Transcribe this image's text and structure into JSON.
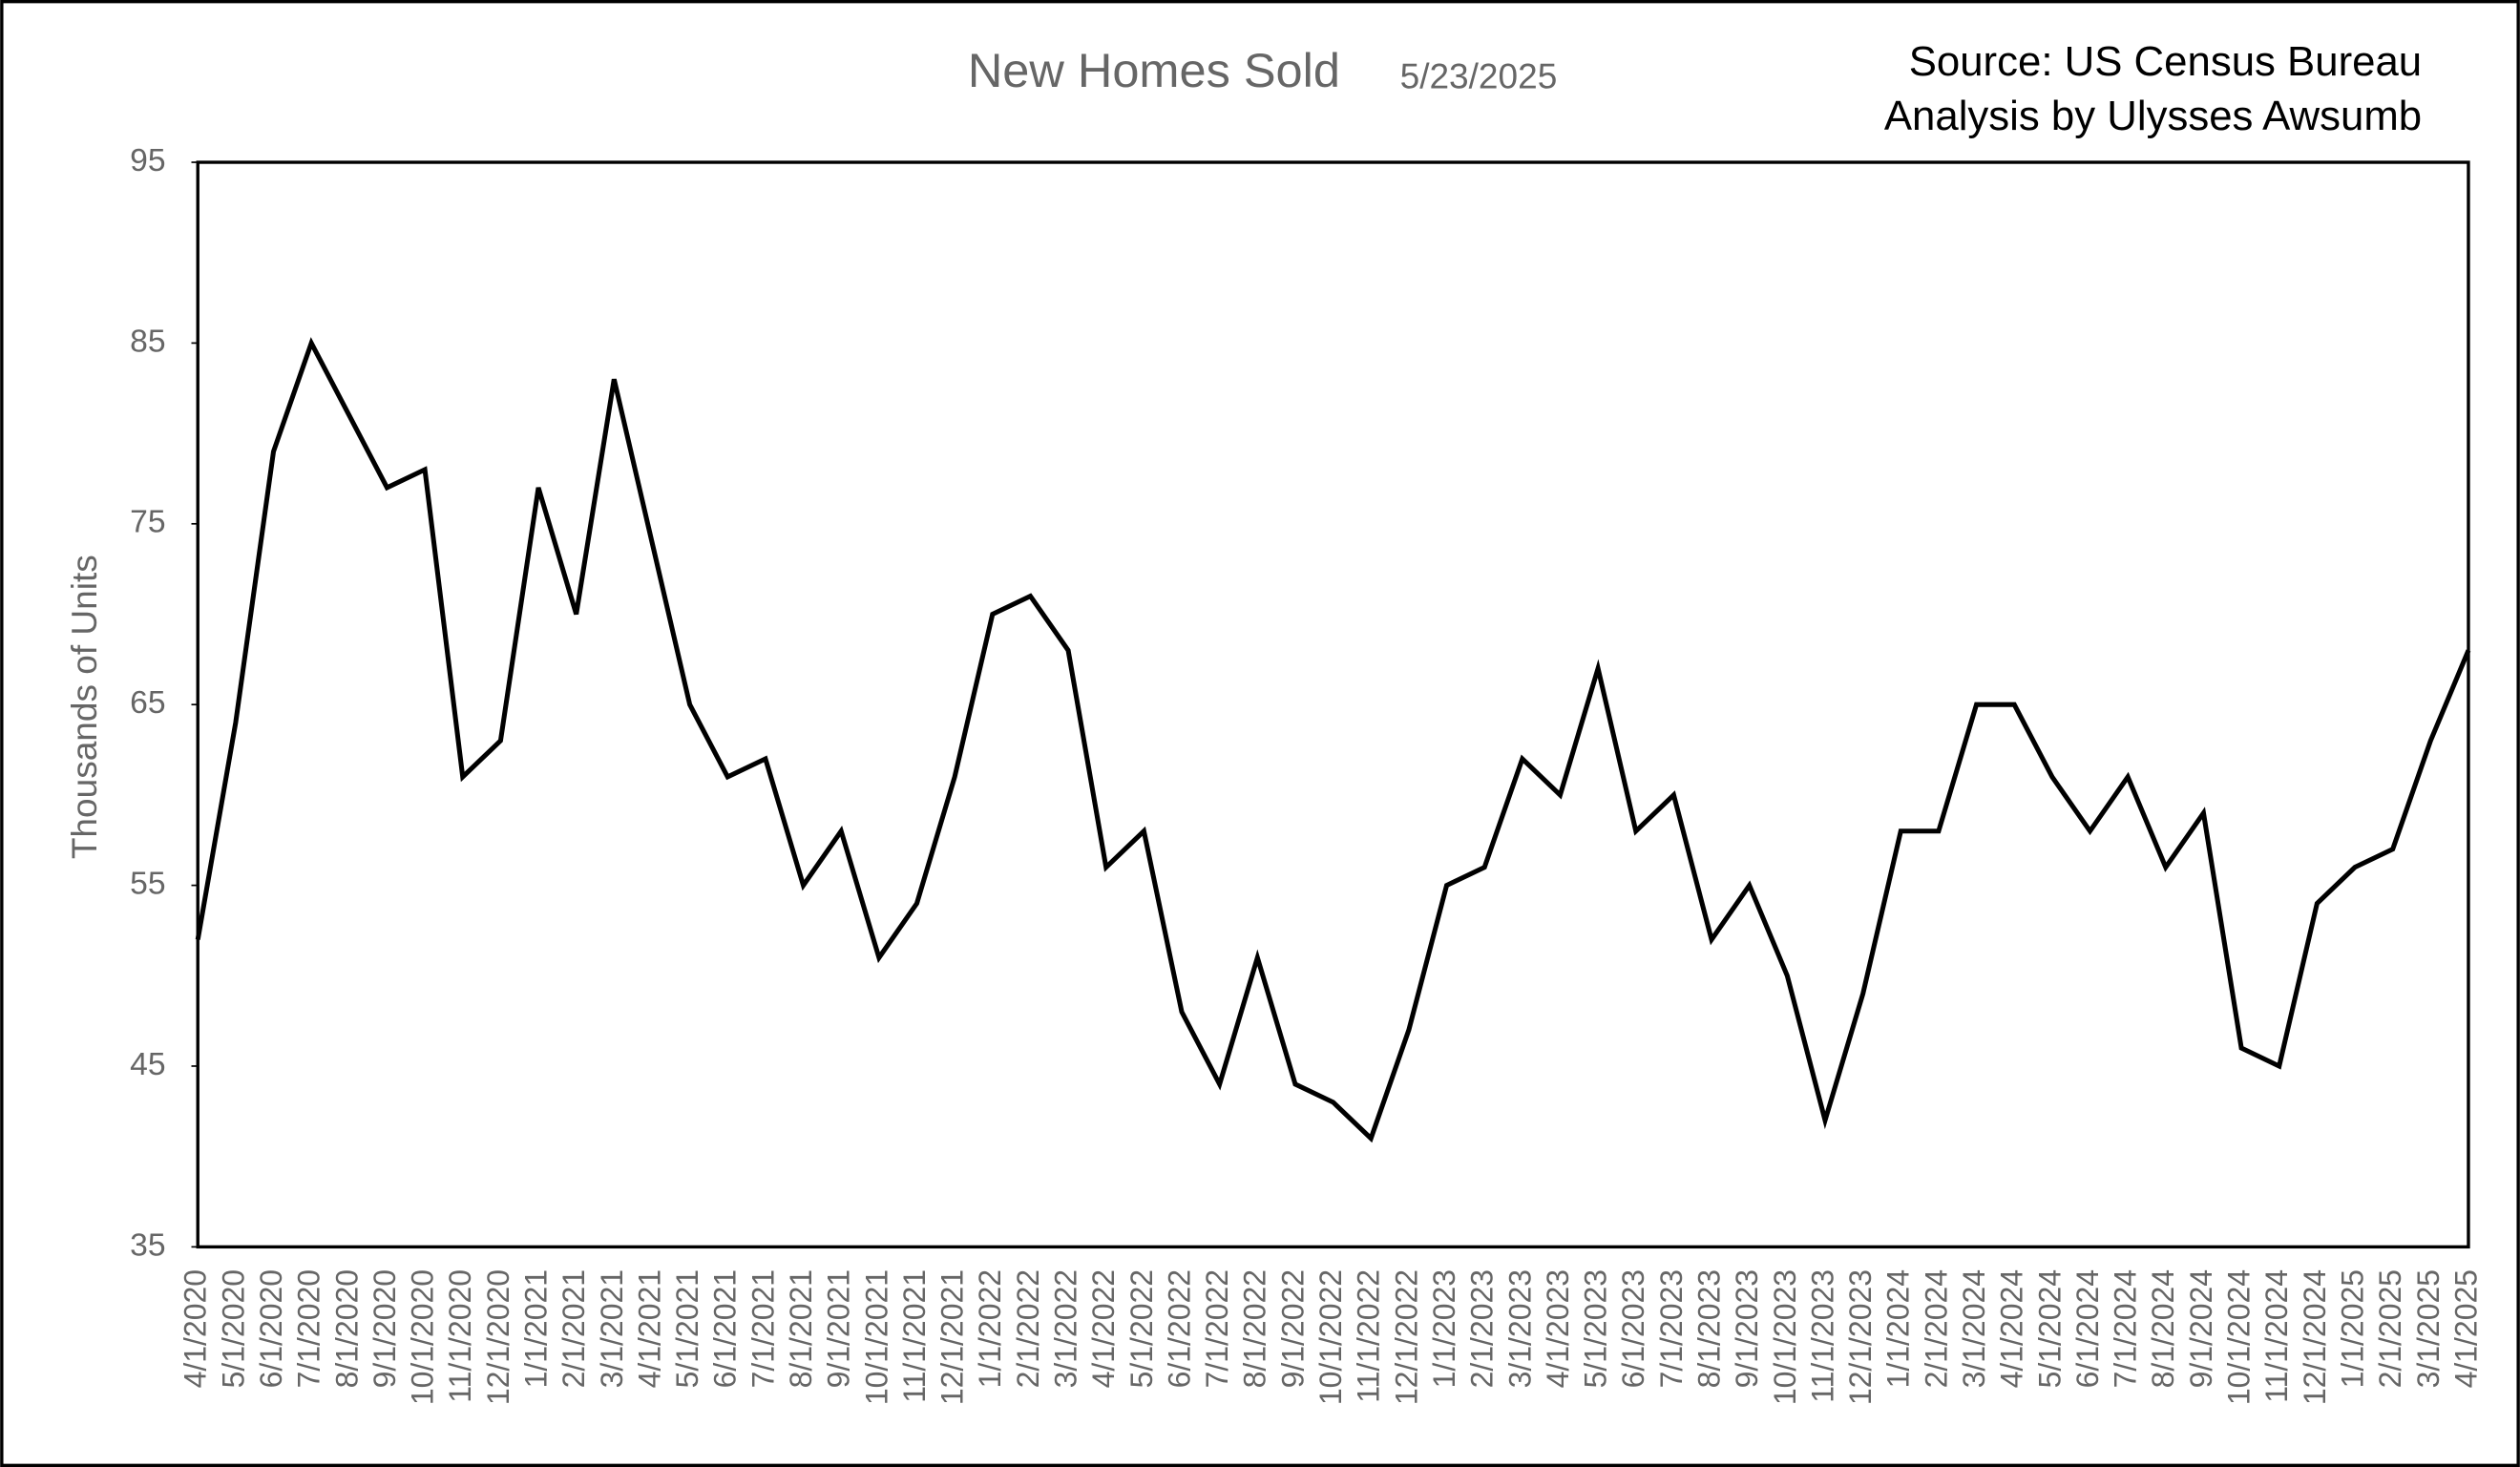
{
  "chart_data": {
    "type": "line",
    "title": "New Homes Sold",
    "subtitle": "5/23/2025",
    "source": [
      "Source: US Census Bureau",
      "Analysis by Ulysses Awsumb"
    ],
    "y_label": "Thousands of Units",
    "categories": [
      "4/1/2020",
      "5/1/2020",
      "6/1/2020",
      "7/1/2020",
      "8/1/2020",
      "9/1/2020",
      "10/1/2020",
      "11/1/2020",
      "12/1/2020",
      "1/1/2021",
      "2/1/2021",
      "3/1/2021",
      "4/1/2021",
      "5/1/2021",
      "6/1/2021",
      "7/1/2021",
      "8/1/2021",
      "9/1/2021",
      "10/1/2021",
      "11/1/2021",
      "12/1/2021",
      "1/1/2022",
      "2/1/2022",
      "3/1/2022",
      "4/1/2022",
      "5/1/2022",
      "6/1/2022",
      "7/1/2022",
      "8/1/2022",
      "9/1/2022",
      "10/1/2022",
      "11/1/2022",
      "12/1/2022",
      "1/1/2023",
      "2/1/2023",
      "3/1/2023",
      "4/1/2023",
      "5/1/2023",
      "6/1/2023",
      "7/1/2023",
      "8/1/2023",
      "9/1/2023",
      "10/1/2023",
      "11/1/2023",
      "12/1/2023",
      "1/1/2024",
      "2/1/2024",
      "3/1/2024",
      "4/1/2024",
      "5/1/2024",
      "6/1/2024",
      "7/1/2024",
      "8/1/2024",
      "9/1/2024",
      "10/1/2024",
      "11/1/2024",
      "12/1/2024",
      "1/1/2025",
      "2/1/2025",
      "3/1/2025",
      "4/1/2025"
    ],
    "values": [
      52,
      64,
      79,
      85,
      81,
      77,
      78,
      61,
      63,
      77,
      70,
      83,
      74,
      65,
      61,
      62,
      55,
      58,
      51,
      54,
      61,
      70,
      71,
      68,
      56,
      58,
      48,
      44,
      51,
      44,
      43,
      41,
      47,
      55,
      56,
      62,
      60,
      67,
      58,
      60,
      52,
      55,
      50,
      42,
      49,
      58,
      58,
      65,
      65,
      61,
      58,
      61,
      56,
      59,
      46,
      45,
      54,
      56,
      57,
      63,
      68
    ],
    "color": "#000000",
    "ylim": [
      35,
      95
    ],
    "yticks": [
      35,
      45,
      55,
      65,
      75,
      85,
      95
    ],
    "grid": false
  }
}
